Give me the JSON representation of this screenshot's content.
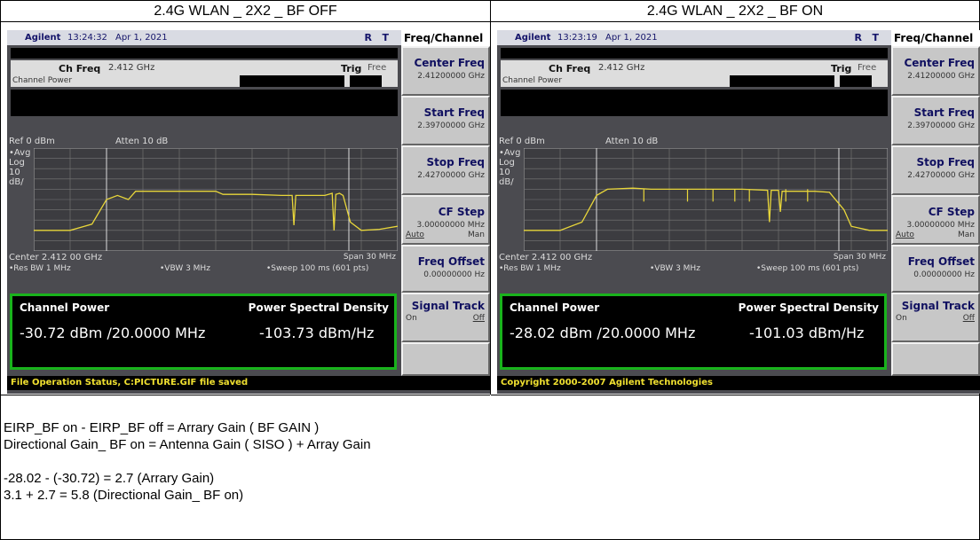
{
  "header": {
    "cells": [
      "2.4G WLAN _ 2X2 _ BF OFF",
      "2.4G WLAN _ 2X2 _ BF ON"
    ]
  },
  "panels": [
    {
      "brand": "Agilent",
      "time": "13:24:32",
      "date": "Apr 1, 2021",
      "flags": "R   T",
      "menu_title": "Freq/Channel",
      "ch_freq_label": "Ch Freq",
      "ch_freq": "2.412 GHz",
      "trig_label": "Trig",
      "trig": "Free",
      "mode": "Channel Power",
      "ref": "Ref 0 dBm",
      "atten": "Atten 10 dB",
      "avg": "•Avg",
      "log": "Log",
      "scale": "10",
      "scale_unit": "dB/",
      "center": "Center 2.412 00 GHz",
      "span": "Span 30 MHz",
      "res_bw": "•Res BW 1 MHz",
      "vbw": "•VBW 3 MHz",
      "sweep": "•Sweep 100 ms (601 pts)",
      "result_label_1": "Channel Power",
      "result_label_2": "Power Spectral Density",
      "result_1": "-30.72 dBm /20.0000 MHz",
      "result_2": "-103.73 dBm/Hz",
      "softkeys": [
        {
          "label": "Center Freq",
          "value": "2.41200000 GHz"
        },
        {
          "label": "Start Freq",
          "value": "2.39700000 GHz"
        },
        {
          "label": "Stop Freq",
          "value": "2.42700000 GHz"
        },
        {
          "label": "CF Step",
          "value": "3.00000000 MHz",
          "options": [
            "Auto",
            "Man"
          ]
        },
        {
          "label": "Freq Offset",
          "value": "0.00000000 Hz"
        },
        {
          "label": "Signal Track",
          "options": [
            "On",
            "Off"
          ]
        }
      ],
      "status": "File Operation Status, C:PICTURE.GIF file saved"
    },
    {
      "brand": "Agilent",
      "time": "13:23:19",
      "date": "Apr 1, 2021",
      "flags": "R   T",
      "menu_title": "Freq/Channel",
      "ch_freq_label": "Ch Freq",
      "ch_freq": "2.412 GHz",
      "trig_label": "Trig",
      "trig": "Free",
      "mode": "Channel Power",
      "ref": "Ref 0 dBm",
      "atten": "Atten 10 dB",
      "avg": "•Avg",
      "log": "Log",
      "scale": "10",
      "scale_unit": "dB/",
      "center": "Center 2.412 00 GHz",
      "span": "Span 30 MHz",
      "res_bw": "•Res BW 1 MHz",
      "vbw": "•VBW 3 MHz",
      "sweep": "•Sweep 100 ms (601 pts)",
      "result_label_1": "Channel Power",
      "result_label_2": "Power Spectral Density",
      "result_1": "-28.02 dBm /20.0000 MHz",
      "result_2": "-101.03 dBm/Hz",
      "softkeys": [
        {
          "label": "Center Freq",
          "value": "2.41200000 GHz"
        },
        {
          "label": "Start Freq",
          "value": "2.39700000 GHz"
        },
        {
          "label": "Stop Freq",
          "value": "2.42700000 GHz"
        },
        {
          "label": "CF Step",
          "value": "3.00000000 MHz",
          "options": [
            "Auto",
            "Man"
          ]
        },
        {
          "label": "Freq Offset",
          "value": "0.00000000 Hz"
        },
        {
          "label": "Signal Track",
          "options": [
            "On",
            "Off"
          ]
        }
      ],
      "status": "Copyright 2000-2007 Agilent Technologies"
    }
  ],
  "notes": {
    "formulas": [
      "EIRP_BF on - EIRP_BF off = Arrary Gain ( BF GAIN )",
      "Directional Gain_ BF on = Antenna Gain ( SISO ) + Array Gain"
    ],
    "calculations": [
      "-28.02 - (-30.72) = 2.7 (Arrary Gain)",
      "3.1 + 2.7 = 5.8 (Directional Gain_ BF on)"
    ]
  }
}
